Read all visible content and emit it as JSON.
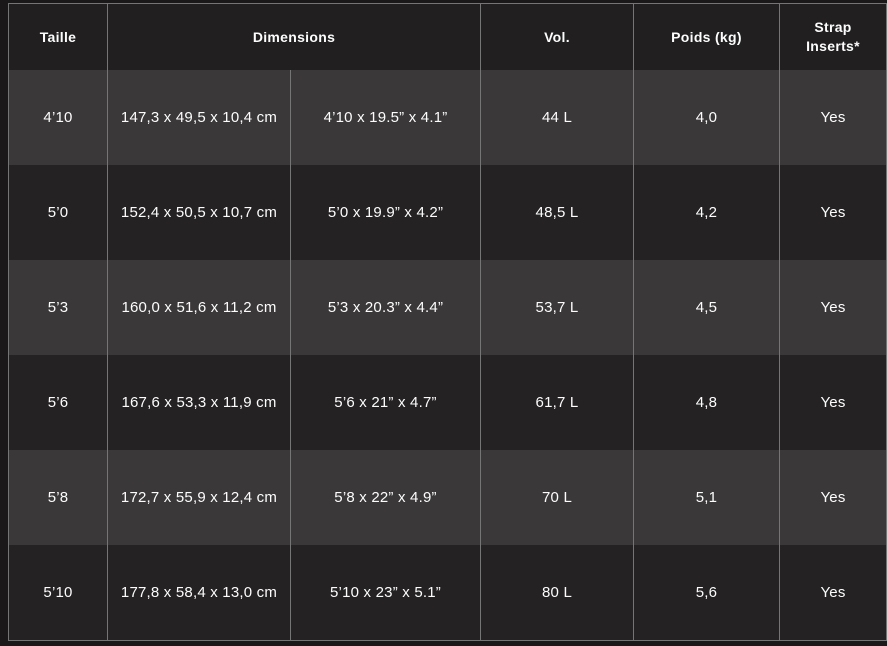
{
  "colors": {
    "page_bg": "#1a1818",
    "header_bg": "#211f1f",
    "row_light_bg": "#3a3838",
    "row_dark_bg": "#242222",
    "grid_line": "#757575",
    "text": "#fdfdfd"
  },
  "header": {
    "taille": "Taille",
    "dimensions": "Dimensions",
    "vol": "Vol.",
    "poids": "Poids (kg)",
    "strap": "Strap\nInserts*"
  },
  "rows": [
    {
      "taille": "4’10",
      "dim_cm": "147,3 x 49,5 x 10,4 cm",
      "dim_in": "4’10 x 19.5” x 4.1”",
      "vol": "44 L",
      "poids": "4,0",
      "strap": "Yes"
    },
    {
      "taille": "5’0",
      "dim_cm": "152,4 x 50,5 x 10,7 cm",
      "dim_in": "5’0 x 19.9” x 4.2”",
      "vol": "48,5 L",
      "poids": "4,2",
      "strap": "Yes"
    },
    {
      "taille": "5’3",
      "dim_cm": "160,0 x 51,6 x 11,2 cm",
      "dim_in": "5’3 x 20.3” x 4.4”",
      "vol": "53,7 L",
      "poids": "4,5",
      "strap": "Yes"
    },
    {
      "taille": "5’6",
      "dim_cm": "167,6 x 53,3 x 11,9 cm",
      "dim_in": "5’6 x 21” x 4.7”",
      "vol": "61,7 L",
      "poids": "4,8",
      "strap": "Yes"
    },
    {
      "taille": "5’8",
      "dim_cm": "172,7 x 55,9 x 12,4 cm",
      "dim_in": "5’8 x 22” x 4.9”",
      "vol": "70 L",
      "poids": "5,1",
      "strap": "Yes"
    },
    {
      "taille": "5’10",
      "dim_cm": "177,8 x 58,4 x 13,0 cm",
      "dim_in": "5’10 x 23” x 5.1”",
      "vol": "80 L",
      "poids": "5,6",
      "strap": "Yes"
    }
  ],
  "chart_data": {
    "type": "table",
    "title": "Board size specifications",
    "columns": [
      "Taille",
      "Dimensions (metric)",
      "Dimensions (imperial)",
      "Vol.",
      "Poids (kg)",
      "Strap Inserts*"
    ],
    "rows": [
      [
        "4’10",
        "147,3 x 49,5 x 10,4 cm",
        "4’10 x 19.5” x 4.1”",
        "44 L",
        "4,0",
        "Yes"
      ],
      [
        "5’0",
        "152,4 x 50,5 x 10,7 cm",
        "5’0 x 19.9” x 4.2”",
        "48,5 L",
        "4,2",
        "Yes"
      ],
      [
        "5’3",
        "160,0 x 51,6 x 11,2 cm",
        "5’3 x 20.3” x 4.4”",
        "53,7 L",
        "4,5",
        "Yes"
      ],
      [
        "5’6",
        "167,6 x 53,3 x 11,9 cm",
        "5’6 x 21” x 4.7”",
        "61,7 L",
        "4,8",
        "Yes"
      ],
      [
        "5’8",
        "172,7 x 55,9 x 12,4 cm",
        "5’8 x 22” x 4.9”",
        "70 L",
        "5,1",
        "Yes"
      ],
      [
        "5’10",
        "177,8 x 58,4 x 13,0 cm",
        "5’10 x 23” x 5.1”",
        "80 L",
        "5,6",
        "Yes"
      ]
    ],
    "layout": {
      "header_row": true,
      "merged_header": "Dimensions spans columns 2-3",
      "row_striping": "alternating light/dark",
      "grid": "vertical separators only"
    }
  }
}
